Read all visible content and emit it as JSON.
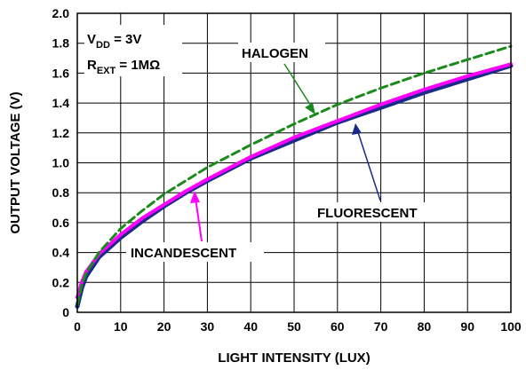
{
  "chart_data": {
    "type": "line",
    "xlabel": "LIGHT INTENSITY (LUX)",
    "ylabel": "OUTPUT VOLTAGE (V)",
    "xlim": [
      0,
      100
    ],
    "ylim": [
      0,
      2.0
    ],
    "x_ticks": [
      "0",
      "10",
      "20",
      "30",
      "40",
      "50",
      "60",
      "70",
      "80",
      "90",
      "100"
    ],
    "y_ticks": [
      "0",
      "0.2",
      "0.4",
      "0.6",
      "0.8",
      "1.0",
      "1.2",
      "1.4",
      "1.6",
      "1.8",
      "2.0"
    ],
    "grid": true,
    "conditions": {
      "vdd": {
        "main": "V",
        "sub": "DD",
        "rest": " = 3V"
      },
      "rext": {
        "main": "R",
        "sub": "EXT",
        "rest": " = 1MΩ"
      }
    },
    "annotations": {
      "halogen": "HALOGEN",
      "fluorescent": "FLUORESCENT",
      "incandescent": "INCANDESCENT"
    },
    "colors": {
      "halogen": "#1a8a1a",
      "fluorescent": "#1a2a8a",
      "incandescent": "#ff00ff"
    },
    "series": [
      {
        "name": "HALOGEN",
        "style": "dashed",
        "x": [
          0,
          1,
          2,
          5,
          10,
          15,
          20,
          25,
          30,
          40,
          50,
          60,
          70,
          80,
          90,
          100
        ],
        "y": [
          0.05,
          0.18,
          0.26,
          0.4,
          0.56,
          0.68,
          0.79,
          0.88,
          0.97,
          1.12,
          1.26,
          1.39,
          1.5,
          1.6,
          1.69,
          1.78
        ]
      },
      {
        "name": "FLUORESCENT",
        "style": "solid",
        "x": [
          0,
          1,
          2,
          5,
          10,
          15,
          20,
          25,
          30,
          40,
          50,
          60,
          70,
          80,
          90,
          100
        ],
        "y": [
          0.04,
          0.16,
          0.24,
          0.37,
          0.5,
          0.61,
          0.71,
          0.8,
          0.88,
          1.03,
          1.15,
          1.27,
          1.37,
          1.47,
          1.56,
          1.65
        ]
      },
      {
        "name": "INCANDESCENT",
        "style": "solid",
        "x": [
          0,
          1,
          2,
          5,
          10,
          15,
          20,
          25,
          30,
          40,
          50,
          60,
          70,
          80,
          90,
          100
        ],
        "y": [
          0.1,
          0.2,
          0.27,
          0.39,
          0.52,
          0.63,
          0.72,
          0.81,
          0.89,
          1.04,
          1.17,
          1.28,
          1.39,
          1.49,
          1.58,
          1.66
        ]
      }
    ]
  }
}
